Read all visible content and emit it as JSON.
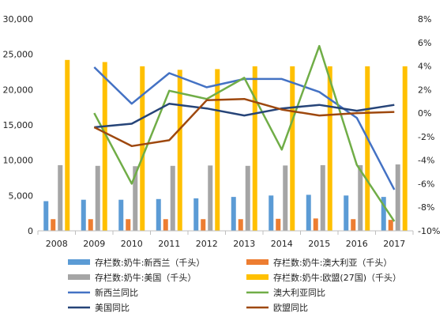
{
  "chart_data": {
    "type": "bar",
    "categories": [
      "2008",
      "2009",
      "2010",
      "2011",
      "2012",
      "2013",
      "2014",
      "2015",
      "2016",
      "2017"
    ],
    "y_left": {
      "range": [
        0,
        30000
      ],
      "ticks": [
        0,
        5000,
        10000,
        15000,
        20000,
        25000,
        30000
      ],
      "tick_labels": [
        "0",
        "5,000",
        "10,000",
        "15,000",
        "20,000",
        "25,000",
        "30,000"
      ]
    },
    "y_right": {
      "range": [
        -10,
        8
      ],
      "ticks": [
        -10,
        -8,
        -6,
        -4,
        -2,
        0,
        2,
        4,
        6,
        8
      ],
      "tick_labels": [
        "-10%",
        "-8%",
        "-6%",
        "-4%",
        "-2%",
        "0%",
        "2%",
        "4%",
        "6%",
        "8%"
      ]
    },
    "bar_series": [
      {
        "name": "存栏数:奶牛:新西兰（千头）",
        "color": "#5b9bd5",
        "values": [
          4200,
          4400,
          4400,
          4500,
          4600,
          4800,
          5000,
          5100,
          5000,
          4800
        ]
      },
      {
        "name": "存栏数:奶牛:澳大利亚（千头）",
        "color": "#ed7d31",
        "values": [
          1650,
          1650,
          1650,
          1650,
          1650,
          1650,
          1700,
          1750,
          1650,
          1550
        ]
      },
      {
        "name": "存栏数:奶牛:美国（千头）",
        "color": "#a5a5a5",
        "values": [
          9300,
          9200,
          9150,
          9200,
          9250,
          9200,
          9250,
          9300,
          9300,
          9400
        ]
      },
      {
        "name": "存栏数:奶牛:欧盟(27国)（千头）",
        "color": "#ffc000",
        "values": [
          24200,
          23900,
          23300,
          22800,
          22900,
          23300,
          23300,
          23300,
          23300,
          23300
        ]
      }
    ],
    "line_series": [
      {
        "name": "新西兰同比",
        "color": "#4472c4",
        "values": [
          null,
          3.9,
          0.8,
          3.4,
          2.2,
          2.9,
          2.9,
          1.8,
          -0.4,
          -6.5
        ]
      },
      {
        "name": "澳大利亚同比",
        "color": "#70ad47",
        "values": [
          null,
          0.0,
          -6.0,
          1.9,
          1.2,
          3.0,
          -3.1,
          5.7,
          -4.4,
          -9.2
        ]
      },
      {
        "name": "美国同比",
        "color": "#264478",
        "values": [
          null,
          -1.2,
          -0.9,
          0.8,
          0.4,
          -0.2,
          0.4,
          0.7,
          0.2,
          0.7
        ]
      },
      {
        "name": "欧盟同比",
        "color": "#9e480e",
        "values": [
          null,
          -1.2,
          -2.8,
          -2.3,
          1.1,
          1.2,
          0.3,
          -0.2,
          0.0,
          0.1
        ]
      }
    ],
    "grid": false,
    "legend_position": "bottom"
  }
}
